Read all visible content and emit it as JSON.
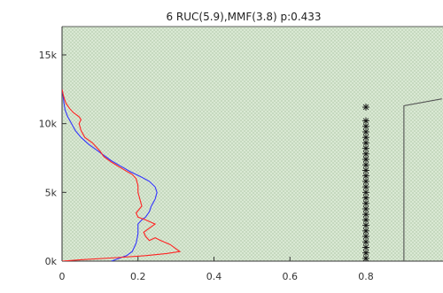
{
  "chart_data": {
    "type": "line",
    "title": "6 RUC(5.9),MMF(3.8) p:0.433",
    "xlabel": "",
    "ylabel": "",
    "xlim": [
      0,
      1.0
    ],
    "ylim": [
      0,
      16000
    ],
    "x_ticks": [
      {
        "value": 0,
        "label": "0"
      },
      {
        "value": 0.2,
        "label": "0.2"
      },
      {
        "value": 0.4,
        "label": "0.4"
      },
      {
        "value": 0.6,
        "label": "0.6"
      },
      {
        "value": 0.8,
        "label": "0.8"
      }
    ],
    "y_ticks": [
      {
        "value": 0,
        "label": "0k"
      },
      {
        "value": 5000,
        "label": "5k"
      },
      {
        "value": 10000,
        "label": "10k"
      },
      {
        "value": 15000,
        "label": "15k"
      }
    ],
    "grid": true,
    "legend": "none",
    "series": [
      {
        "color": "#3333ff",
        "style": "line",
        "points": [
          [
            0.13,
            0
          ],
          [
            0.15,
            200
          ],
          [
            0.17,
            400
          ],
          [
            0.185,
            700
          ],
          [
            0.19,
            1000
          ],
          [
            0.195,
            1300
          ],
          [
            0.198,
            1700
          ],
          [
            0.2,
            2000
          ],
          [
            0.2,
            2300
          ],
          [
            0.2,
            2700
          ],
          [
            0.21,
            3000
          ],
          [
            0.22,
            3200
          ],
          [
            0.23,
            3600
          ],
          [
            0.235,
            4000
          ],
          [
            0.245,
            4500
          ],
          [
            0.25,
            5000
          ],
          [
            0.245,
            5400
          ],
          [
            0.23,
            5800
          ],
          [
            0.21,
            6100
          ],
          [
            0.18,
            6500
          ],
          [
            0.155,
            6900
          ],
          [
            0.13,
            7300
          ],
          [
            0.1,
            7900
          ],
          [
            0.07,
            8500
          ],
          [
            0.05,
            9000
          ],
          [
            0.035,
            9500
          ],
          [
            0.025,
            10000
          ],
          [
            0.015,
            10500
          ],
          [
            0.008,
            11000
          ],
          [
            0.005,
            11500
          ],
          [
            0.003,
            12000
          ],
          [
            0.0,
            12500
          ]
        ]
      },
      {
        "color": "#ff2222",
        "style": "line",
        "points": [
          [
            0.0,
            0
          ],
          [
            0.05,
            100
          ],
          [
            0.14,
            250
          ],
          [
            0.22,
            400
          ],
          [
            0.275,
            550
          ],
          [
            0.31,
            700
          ],
          [
            0.3,
            900
          ],
          [
            0.285,
            1200
          ],
          [
            0.26,
            1500
          ],
          [
            0.245,
            1700
          ],
          [
            0.23,
            1500
          ],
          [
            0.22,
            1800
          ],
          [
            0.215,
            2100
          ],
          [
            0.23,
            2400
          ],
          [
            0.245,
            2700
          ],
          [
            0.22,
            3000
          ],
          [
            0.2,
            3200
          ],
          [
            0.195,
            3500
          ],
          [
            0.21,
            4000
          ],
          [
            0.205,
            4500
          ],
          [
            0.2,
            5000
          ],
          [
            0.2,
            5500
          ],
          [
            0.195,
            6000
          ],
          [
            0.185,
            6300
          ],
          [
            0.16,
            6700
          ],
          [
            0.13,
            7200
          ],
          [
            0.11,
            7600
          ],
          [
            0.1,
            8000
          ],
          [
            0.08,
            8600
          ],
          [
            0.06,
            9000
          ],
          [
            0.05,
            9500
          ],
          [
            0.045,
            10000
          ],
          [
            0.05,
            10300
          ],
          [
            0.045,
            10500
          ],
          [
            0.03,
            10800
          ],
          [
            0.02,
            11100
          ],
          [
            0.01,
            11500
          ],
          [
            0.004,
            12000
          ],
          [
            0.0,
            12500
          ]
        ]
      },
      {
        "color": "#111111",
        "style": "markers",
        "marker": "asterisk",
        "points": [
          [
            0.8,
            200
          ],
          [
            0.8,
            600
          ],
          [
            0.8,
            1000
          ],
          [
            0.8,
            1400
          ],
          [
            0.8,
            1800
          ],
          [
            0.8,
            2200
          ],
          [
            0.8,
            2600
          ],
          [
            0.8,
            3000
          ],
          [
            0.8,
            3400
          ],
          [
            0.8,
            3800
          ],
          [
            0.8,
            4200
          ],
          [
            0.8,
            4600
          ],
          [
            0.8,
            5000
          ],
          [
            0.8,
            5400
          ],
          [
            0.8,
            5800
          ],
          [
            0.8,
            6200
          ],
          [
            0.8,
            6600
          ],
          [
            0.8,
            7000
          ],
          [
            0.8,
            7400
          ],
          [
            0.8,
            7800
          ],
          [
            0.8,
            8200
          ],
          [
            0.8,
            8600
          ],
          [
            0.8,
            9000
          ],
          [
            0.8,
            9400
          ],
          [
            0.8,
            9800
          ],
          [
            0.8,
            10200
          ],
          [
            0.8,
            11200
          ]
        ]
      },
      {
        "color": "#555555",
        "style": "line",
        "points": [
          [
            0.9,
            0
          ],
          [
            0.9,
            11300
          ],
          [
            1.0,
            11800
          ]
        ]
      }
    ]
  }
}
